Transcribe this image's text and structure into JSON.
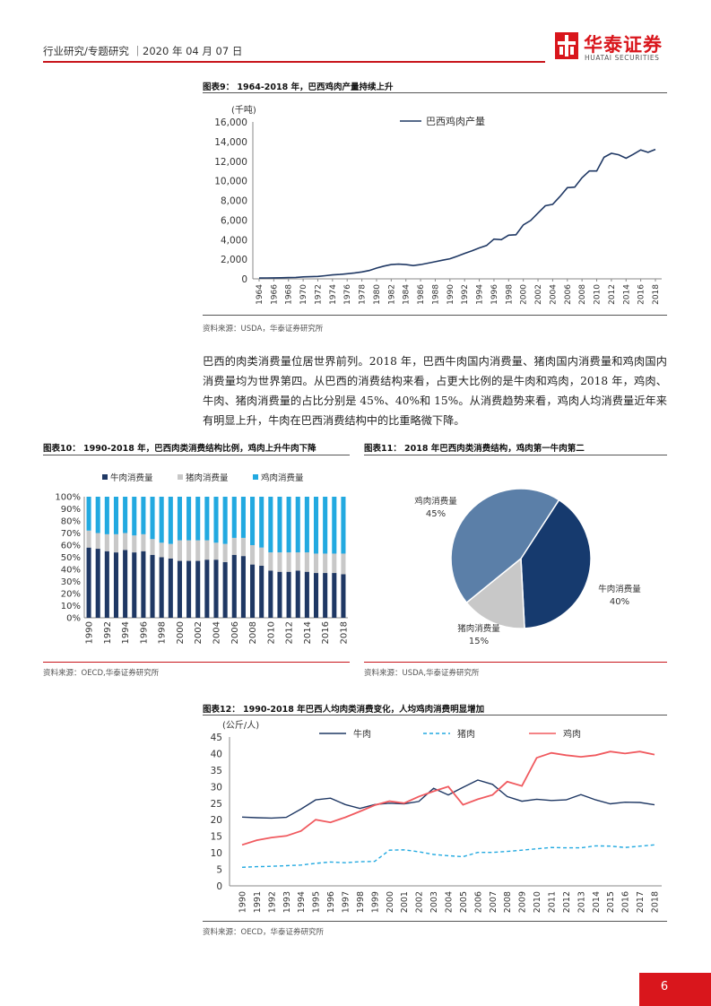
{
  "header": {
    "left_text": "行业研究/专题研究 ｜2020 年 04 月 07 日",
    "brand_cn": "华泰证券",
    "brand_en": "HUATAI SECURITIES"
  },
  "paragraph": "巴西的肉类消费量位居世界前列。2018 年，巴西牛肉国内消费量、猪肉国内消费量和鸡肉国内消费量均为世界第四。从巴西的消费结构来看，占更大比例的是牛肉和鸡肉，2018 年，鸡肉、牛肉、猪肉消费量的占比分别是 45%、40%和 15%。从消费趋势来看，鸡肉人均消费量近年来有明显上升，牛肉在巴西消费结构中的比重略微下降。",
  "page_number": "6",
  "colors": {
    "red": "#d9161c",
    "navy": "#1f3864",
    "grey": "#c8c8c8",
    "sky": "#22a9e0",
    "pink": "#f05a5f"
  },
  "figures": {
    "fig9": {
      "title": "图表9：  1964-2018 年，巴西鸡肉产量持续上升",
      "source": "资料来源：USDA，华泰证券研究所"
    },
    "fig10": {
      "title": "图表10：  1990-2018 年，巴西肉类消费结构比例，鸡肉上升牛肉下降",
      "source": "资料来源：OECD,华泰证券研究所"
    },
    "fig11": {
      "title": "图表11：  2018 年巴西肉类消费结构，鸡肉第一牛肉第二",
      "source": "资料来源：USDA,华泰证券研究所"
    },
    "fig12": {
      "title": "图表12：  1990-2018 年巴西人均肉类消费变化，人均鸡肉消费明显增加",
      "source": "资料来源：OECD，华泰证券研究所"
    }
  },
  "chart_data": [
    {
      "id": "fig9",
      "type": "line",
      "ylabel": "(千吨)",
      "ylim": [
        0,
        16000
      ],
      "yticks": [
        0,
        2000,
        4000,
        6000,
        8000,
        10000,
        12000,
        14000,
        16000
      ],
      "ytick_labels": [
        "0",
        "2,000",
        "4,000",
        "6,000",
        "8,000",
        "10,000",
        "12,000",
        "14,000",
        "16,000"
      ],
      "x_tick_labels": [
        "1964",
        "1966",
        "1968",
        "1970",
        "1972",
        "1974",
        "1976",
        "1978",
        "1980",
        "1982",
        "1984",
        "1986",
        "1988",
        "1990",
        "1992",
        "1994",
        "1996",
        "1998",
        "2000",
        "2002",
        "2004",
        "2006",
        "2008",
        "2010",
        "2012",
        "2014",
        "2016",
        "2018"
      ],
      "legend_position": "top-center",
      "series": [
        {
          "name": "巴西鸡肉产量",
          "color": "#1f3864",
          "x": [
            1964,
            1965,
            1966,
            1967,
            1968,
            1969,
            1970,
            1971,
            1972,
            1973,
            1974,
            1975,
            1976,
            1977,
            1978,
            1979,
            1980,
            1981,
            1982,
            1983,
            1984,
            1985,
            1986,
            1987,
            1988,
            1989,
            1990,
            1991,
            1992,
            1993,
            1994,
            1995,
            1996,
            1997,
            1998,
            1999,
            2000,
            2001,
            2002,
            2003,
            2004,
            2005,
            2006,
            2007,
            2008,
            2009,
            2010,
            2011,
            2012,
            2013,
            2014,
            2015,
            2016,
            2017,
            2018
          ],
          "values": [
            80,
            90,
            100,
            110,
            130,
            150,
            200,
            220,
            250,
            320,
            400,
            450,
            520,
            600,
            700,
            850,
            1100,
            1300,
            1450,
            1500,
            1450,
            1350,
            1450,
            1600,
            1750,
            1900,
            2050,
            2300,
            2600,
            2850,
            3150,
            3400,
            4050,
            4000,
            4450,
            4500,
            5500,
            5950,
            6700,
            7450,
            7600,
            8400,
            9300,
            9350,
            10300,
            11000,
            11000,
            12400,
            12800,
            12650,
            12300,
            12700,
            13150,
            12900,
            13200
          ]
        }
      ]
    },
    {
      "id": "fig10",
      "type": "bar",
      "stacked": true,
      "ylim": [
        0,
        100
      ],
      "ytick_labels": [
        "0%",
        "10%",
        "20%",
        "30%",
        "40%",
        "50%",
        "60%",
        "70%",
        "80%",
        "90%",
        "100%"
      ],
      "categories": [
        "1990",
        "1991",
        "1992",
        "1993",
        "1994",
        "1995",
        "1996",
        "1997",
        "1998",
        "1999",
        "2000",
        "2001",
        "2002",
        "2003",
        "2004",
        "2005",
        "2006",
        "2007",
        "2008",
        "2009",
        "2010",
        "2011",
        "2012",
        "2013",
        "2014",
        "2015",
        "2016",
        "2017",
        "2018"
      ],
      "x_tick_labels": [
        "1990",
        "1992",
        "1994",
        "1996",
        "1998",
        "2000",
        "2002",
        "2004",
        "2006",
        "2008",
        "2010",
        "2012",
        "2014",
        "2016",
        "2018"
      ],
      "legend_position": "top",
      "series": [
        {
          "name": "牛肉消费量",
          "color": "#1f3864",
          "values": [
            58,
            57,
            55,
            54,
            56,
            54,
            55,
            52,
            50,
            49,
            47,
            47,
            47,
            48,
            48,
            46,
            52,
            51,
            44,
            43,
            39,
            38,
            38,
            39,
            38,
            37,
            37,
            37,
            36
          ]
        },
        {
          "name": "猪肉消费量",
          "color": "#c8c8c8",
          "values": [
            14,
            13,
            14,
            15,
            14,
            14,
            14,
            13,
            12,
            12,
            17,
            17,
            17,
            16,
            14,
            15,
            14,
            15,
            16,
            15,
            15,
            16,
            16,
            15,
            16,
            16,
            16,
            16,
            17
          ]
        },
        {
          "name": "鸡肉消费量",
          "color": "#22a9e0",
          "values": [
            28,
            30,
            31,
            31,
            30,
            32,
            31,
            35,
            38,
            39,
            36,
            36,
            36,
            36,
            38,
            39,
            34,
            34,
            40,
            42,
            46,
            46,
            46,
            46,
            46,
            47,
            47,
            47,
            47
          ]
        }
      ]
    },
    {
      "id": "fig11",
      "type": "pie",
      "slices": [
        {
          "name": "鸡肉消费量",
          "value": 45,
          "label": "45%",
          "color": "#5b7fa8"
        },
        {
          "name": "牛肉消费量",
          "value": 40,
          "label": "40%",
          "color": "#163a6e"
        },
        {
          "name": "猪肉消费量",
          "value": 15,
          "label": "15%",
          "color": "#c8c8c8"
        }
      ]
    },
    {
      "id": "fig12",
      "type": "line",
      "ylabel": "(公斤/人)",
      "ylim": [
        0,
        45
      ],
      "yticks": [
        0,
        5,
        10,
        15,
        20,
        25,
        30,
        35,
        40,
        45
      ],
      "categories": [
        "1990",
        "1991",
        "1992",
        "1993",
        "1994",
        "1995",
        "1996",
        "1997",
        "1998",
        "1999",
        "2000",
        "2001",
        "2002",
        "2003",
        "2004",
        "2005",
        "2006",
        "2007",
        "2008",
        "2009",
        "2010",
        "2011",
        "2012",
        "2013",
        "2014",
        "2015",
        "2016",
        "2017",
        "2018"
      ],
      "legend_position": "top",
      "series": [
        {
          "name": "牛肉",
          "color": "#1f3864",
          "dash": "solid",
          "values": [
            20.8,
            20.6,
            20.5,
            20.7,
            23.2,
            26.0,
            26.5,
            24.6,
            23.4,
            24.6,
            25.0,
            24.8,
            25.5,
            29.5,
            27.5,
            29.8,
            32.0,
            30.7,
            27.0,
            25.6,
            26.2,
            25.8,
            26.0,
            27.6,
            26.0,
            24.8,
            25.3,
            25.2,
            24.5
          ]
        },
        {
          "name": "猪肉",
          "color": "#22a9e0",
          "dash": "dashed",
          "values": [
            5.6,
            5.8,
            5.9,
            6.1,
            6.3,
            6.8,
            7.2,
            7.0,
            7.3,
            7.4,
            10.8,
            10.9,
            10.3,
            9.5,
            9.1,
            8.8,
            10.1,
            10.1,
            10.4,
            10.8,
            11.2,
            11.6,
            11.5,
            11.5,
            12.1,
            12.0,
            11.6,
            12.0,
            12.4
          ]
        },
        {
          "name": "鸡肉",
          "color": "#f05a5f",
          "dash": "solid",
          "values": [
            12.4,
            13.8,
            14.6,
            15.1,
            16.6,
            20.0,
            19.2,
            20.7,
            22.5,
            24.4,
            25.6,
            25.0,
            27.0,
            28.6,
            30.0,
            24.5,
            26.2,
            27.5,
            31.5,
            30.2,
            38.7,
            40.2,
            39.5,
            39.0,
            39.5,
            40.6,
            40.0,
            40.6,
            39.7
          ]
        }
      ]
    }
  ]
}
